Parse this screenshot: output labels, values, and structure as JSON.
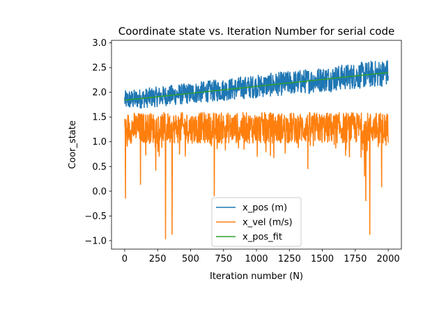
{
  "chart_data": {
    "type": "line",
    "title": "Coordinate state vs. Iteration Number for serial code",
    "xlabel": "Iteration number (N)",
    "ylabel": "Coor_state",
    "xlim": [
      -100,
      2100
    ],
    "ylim": [
      -1.17,
      3.05
    ],
    "xticks": [
      0,
      250,
      500,
      750,
      1000,
      1250,
      1500,
      1750,
      2000
    ],
    "yticks": [
      -1.0,
      -0.5,
      0.0,
      0.5,
      1.0,
      1.5,
      2.0,
      2.5,
      3.0
    ],
    "xtick_labels": [
      "0",
      "250",
      "500",
      "750",
      "1000",
      "1250",
      "1500",
      "1750",
      "2000"
    ],
    "ytick_labels": [
      "−1.0",
      "−0.5",
      "0.0",
      "0.5",
      "1.0",
      "1.5",
      "2.0",
      "2.5",
      "3.0"
    ],
    "grid": false,
    "legend_position": "lower-center",
    "series": [
      {
        "name": "x_pos (m)",
        "color": "#1f77b4",
        "trend": {
          "x": [
            0,
            2000
          ],
          "y": [
            1.84,
            2.4
          ]
        },
        "band_low": 1.58,
        "band_high_start": 2.12,
        "band_high_end": 2.78,
        "noise_halfwidth": 0.2,
        "min": 1.62,
        "max": 2.86
      },
      {
        "name": "x_vel (m/s)",
        "color": "#ff7f0e",
        "center": 1.28,
        "noise_halfwidth": 0.32,
        "max": 1.85,
        "spikes": [
          {
            "x": 5,
            "y": -0.15
          },
          {
            "x": 120,
            "y": 0.13
          },
          {
            "x": 235,
            "y": 0.42
          },
          {
            "x": 310,
            "y": -0.97
          },
          {
            "x": 360,
            "y": -0.88
          },
          {
            "x": 680,
            "y": -0.1
          },
          {
            "x": 1390,
            "y": 0.45
          },
          {
            "x": 1820,
            "y": 0.3
          },
          {
            "x": 1830,
            "y": -0.2
          },
          {
            "x": 1860,
            "y": -0.88
          },
          {
            "x": 1950,
            "y": 0.08
          }
        ]
      },
      {
        "name": "x_pos_fit",
        "color": "#2ca02c",
        "x": [
          0,
          2000
        ],
        "y": [
          1.84,
          2.4
        ]
      }
    ]
  }
}
